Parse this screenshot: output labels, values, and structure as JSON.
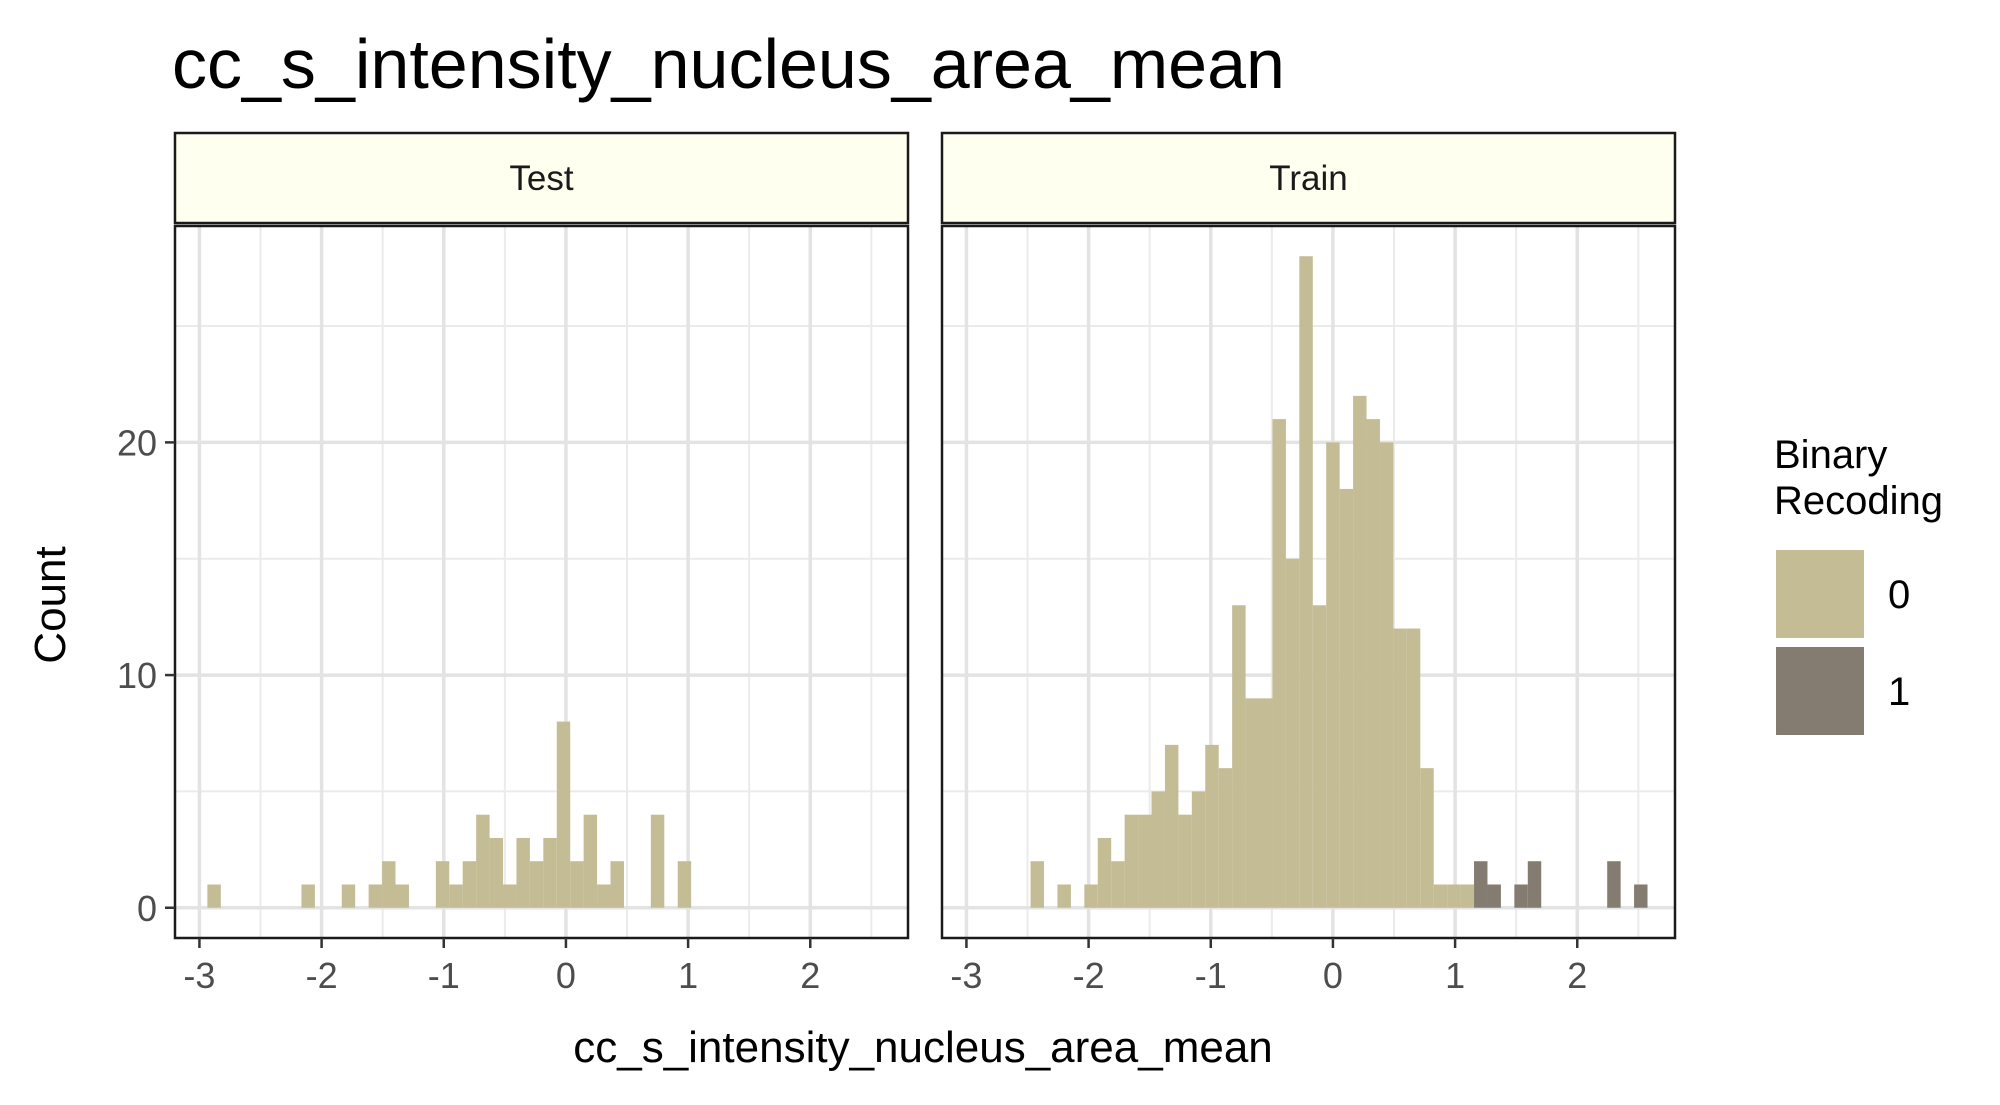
{
  "chart_data": {
    "type": "bar",
    "title": "cc_s_intensity_nucleus_area_mean",
    "xlabel": "cc_s_intensity_nucleus_area_mean",
    "ylabel": "Count",
    "xlim": [
      -3.2,
      2.8
    ],
    "ylim": [
      -1.3,
      29.3
    ],
    "x_ticks": [
      -3,
      -2,
      -1,
      0,
      1,
      2
    ],
    "x_tick_labels": [
      "-3",
      "-2",
      "-1",
      "0",
      "1",
      "2"
    ],
    "y_ticks": [
      0,
      10,
      20
    ],
    "y_tick_labels": [
      "0",
      "10",
      "20"
    ],
    "bin_width": 0.11,
    "grid": true,
    "legend": {
      "title": "Binary\nRecoding",
      "position": "right",
      "entries": [
        {
          "label": "0",
          "color": "#c4bc94"
        },
        {
          "label": "1",
          "color": "#847c70"
        }
      ]
    },
    "panels": [
      {
        "label": "Test",
        "series": [
          {
            "name": "0",
            "points": [
              [
                -2.88,
                1
              ],
              [
                -2.11,
                1
              ],
              [
                -1.78,
                1
              ],
              [
                -1.56,
                1
              ],
              [
                -1.45,
                2
              ],
              [
                -1.34,
                1
              ],
              [
                -1.01,
                2
              ],
              [
                -0.9,
                1
              ],
              [
                -0.79,
                2
              ],
              [
                -0.68,
                4
              ],
              [
                -0.57,
                3
              ],
              [
                -0.46,
                1
              ],
              [
                -0.35,
                3
              ],
              [
                -0.24,
                2
              ],
              [
                -0.13,
                3
              ],
              [
                -0.02,
                8
              ],
              [
                0.09,
                2
              ],
              [
                0.2,
                4
              ],
              [
                0.31,
                1
              ],
              [
                0.42,
                2
              ],
              [
                0.75,
                4
              ],
              [
                0.97,
                2
              ]
            ]
          },
          {
            "name": "1",
            "points": []
          }
        ]
      },
      {
        "label": "Train",
        "series": [
          {
            "name": "0",
            "points": [
              [
                -2.42,
                2
              ],
              [
                -2.2,
                1
              ],
              [
                -1.98,
                1
              ],
              [
                -1.87,
                3
              ],
              [
                -1.76,
                2
              ],
              [
                -1.65,
                4
              ],
              [
                -1.54,
                4
              ],
              [
                -1.43,
                5
              ],
              [
                -1.32,
                7
              ],
              [
                -1.21,
                4
              ],
              [
                -1.1,
                5
              ],
              [
                -0.99,
                7
              ],
              [
                -0.88,
                6
              ],
              [
                -0.77,
                13
              ],
              [
                -0.66,
                9
              ],
              [
                -0.55,
                9
              ],
              [
                -0.44,
                21
              ],
              [
                -0.33,
                15
              ],
              [
                -0.22,
                28
              ],
              [
                -0.11,
                13
              ],
              [
                0.0,
                20
              ],
              [
                0.11,
                18
              ],
              [
                0.22,
                22
              ],
              [
                0.33,
                21
              ],
              [
                0.44,
                20
              ],
              [
                0.55,
                12
              ],
              [
                0.66,
                12
              ],
              [
                0.77,
                6
              ],
              [
                0.88,
                1
              ],
              [
                0.99,
                1
              ],
              [
                1.1,
                1
              ]
            ]
          },
          {
            "name": "1",
            "points": [
              [
                1.21,
                2
              ],
              [
                1.32,
                1
              ],
              [
                1.54,
                1
              ],
              [
                1.65,
                2
              ],
              [
                2.3,
                2
              ],
              [
                2.52,
                1
              ]
            ]
          }
        ]
      }
    ]
  }
}
